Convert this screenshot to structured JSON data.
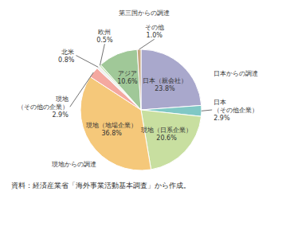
{
  "chart_data": {
    "type": "pie",
    "categories": [
      "日本（親会社）",
      "日本\n（その他企業）",
      "現地（日系企業）",
      "現地（地場企業）",
      "現地\n（その他の企業）",
      "北米",
      "欧州",
      "アジア",
      "その他"
    ],
    "values": [
      23.8,
      2.9,
      20.6,
      36.8,
      2.9,
      0.8,
      0.5,
      10.6,
      1.0
    ],
    "value_labels": [
      "23.8%",
      "2.9%",
      "20.6%",
      "36.8%",
      "2.9%",
      "0.8%",
      "0.5%",
      "10.6%",
      "1.0%"
    ],
    "colors": [
      "#a9a8cc",
      "#80c8c5",
      "#c8dfa0",
      "#f5c87a",
      "#f4a8a0",
      "#f0f0f0",
      "#c8e8b8",
      "#a0c898",
      "#c8a880"
    ],
    "data_labels": true,
    "annotations": [
      "日本からの調達",
      "現地からの調達",
      "第三国からの調達"
    ],
    "source": "資料：経済産業省「海外事業活動基本調査」から作成。"
  }
}
